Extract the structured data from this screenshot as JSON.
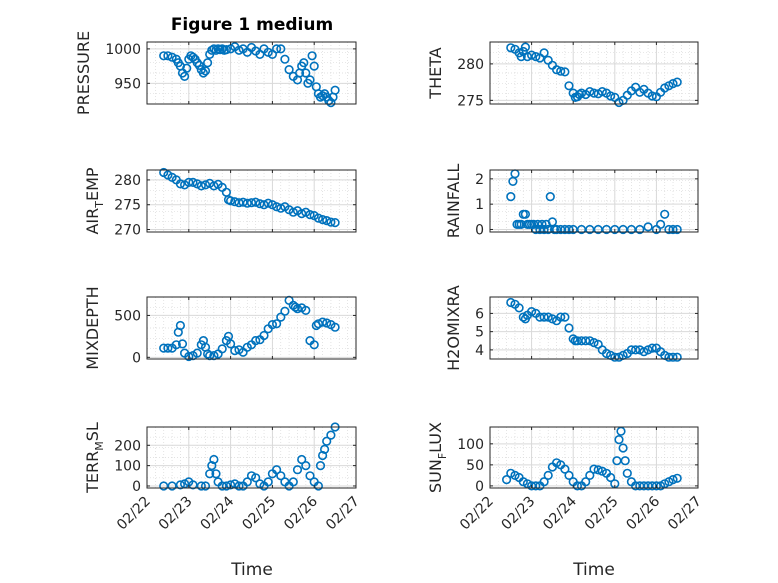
{
  "figure": {
    "title": "Figure 1 medium",
    "xlabel": "Time",
    "marker_color": "#0072BD",
    "grid_color": "#d9d9d9",
    "x_ticks": [
      "02/22",
      "02/23",
      "02/24",
      "02/25",
      "02/26",
      "02/27"
    ]
  },
  "chart_data": [
    {
      "type": "scatter",
      "ylabel": "PRESSURE",
      "ylim": [
        920,
        1010
      ],
      "yticks": [
        950,
        1000
      ],
      "x": [
        0.4,
        0.5,
        0.6,
        0.7,
        0.75,
        0.8,
        0.85,
        0.9,
        0.95,
        1.0,
        1.05,
        1.1,
        1.15,
        1.2,
        1.25,
        1.3,
        1.35,
        1.4,
        1.45,
        1.5,
        1.55,
        1.6,
        1.65,
        1.7,
        1.75,
        1.8,
        1.85,
        1.9,
        2.0,
        2.1,
        2.2,
        2.3,
        2.4,
        2.5,
        2.6,
        2.7,
        2.8,
        2.9,
        3.0,
        3.1,
        3.2,
        3.3,
        3.4,
        3.5,
        3.6,
        3.65,
        3.7,
        3.75,
        3.8,
        3.85,
        3.9,
        3.95,
        4.0,
        4.05,
        4.1,
        4.15,
        4.2,
        4.25,
        4.3,
        4.35,
        4.4,
        4.45,
        4.5
      ],
      "y": [
        990,
        990,
        988,
        985,
        980,
        975,
        965,
        960,
        972,
        985,
        990,
        988,
        985,
        980,
        976,
        970,
        965,
        968,
        980,
        992,
        998,
        1000,
        998,
        1000,
        999,
        1000,
        998,
        999,
        1000,
        1003,
        998,
        1000,
        995,
        1002,
        997,
        992,
        1000,
        995,
        992,
        1000,
        1000,
        985,
        970,
        960,
        955,
        965,
        975,
        980,
        965,
        950,
        955,
        990,
        975,
        945,
        935,
        930,
        932,
        935,
        930,
        925,
        922,
        930,
        940
      ]
    },
    {
      "type": "scatter",
      "ylabel": "THETA",
      "ylim": [
        274.5,
        283
      ],
      "yticks": [
        275,
        280
      ],
      "x": [
        0.5,
        0.6,
        0.7,
        0.75,
        0.8,
        0.85,
        0.9,
        1.0,
        1.1,
        1.2,
        1.3,
        1.4,
        1.5,
        1.6,
        1.7,
        1.8,
        1.9,
        2.0,
        2.05,
        2.1,
        2.15,
        2.2,
        2.3,
        2.4,
        2.5,
        2.6,
        2.7,
        2.8,
        2.9,
        3.0,
        3.1,
        3.2,
        3.3,
        3.4,
        3.5,
        3.6,
        3.7,
        3.8,
        3.9,
        4.0,
        4.1,
        4.2,
        4.3,
        4.4,
        4.5
      ],
      "y": [
        282.2,
        282,
        281.5,
        281,
        281.7,
        282.3,
        281,
        281.2,
        281,
        280.8,
        281.5,
        280.5,
        279.8,
        279.2,
        279,
        278.9,
        277,
        276,
        275.4,
        275.5,
        275.8,
        276,
        275.8,
        276.2,
        276,
        275.9,
        276.2,
        276,
        275.6,
        275.4,
        274.7,
        275,
        275.7,
        276.3,
        276.8,
        276.1,
        276.5,
        276,
        275.6,
        275.5,
        276.1,
        276.7,
        277,
        277.3,
        277.5
      ]
    },
    {
      "type": "scatter",
      "ylabel": "AIR_TEMP",
      "ylim": [
        269.5,
        282
      ],
      "yticks": [
        270,
        275,
        280
      ],
      "x": [
        0.4,
        0.5,
        0.6,
        0.7,
        0.8,
        0.9,
        1.0,
        1.1,
        1.2,
        1.3,
        1.4,
        1.5,
        1.6,
        1.7,
        1.8,
        1.9,
        1.95,
        2.0,
        2.1,
        2.2,
        2.3,
        2.4,
        2.5,
        2.6,
        2.7,
        2.8,
        2.9,
        3.0,
        3.1,
        3.2,
        3.3,
        3.4,
        3.5,
        3.6,
        3.7,
        3.8,
        3.9,
        4.0,
        4.1,
        4.2,
        4.3,
        4.4,
        4.5
      ],
      "y": [
        281.5,
        281,
        280.5,
        280,
        279.2,
        279,
        279.5,
        279.5,
        279.2,
        278.8,
        279,
        279.3,
        278.8,
        279.1,
        278.5,
        277.5,
        276,
        275.8,
        275.6,
        275.4,
        275.5,
        275.3,
        275.4,
        275.5,
        275.2,
        275,
        275.3,
        275,
        274.6,
        274.3,
        274.6,
        274,
        273.5,
        273.8,
        273.2,
        273.5,
        273,
        272.8,
        272.3,
        272,
        271.8,
        271.5,
        271.4
      ]
    },
    {
      "type": "scatter",
      "ylabel": "RAINFALL",
      "ylim": [
        -0.1,
        2.35
      ],
      "yticks": [
        0,
        1,
        2
      ],
      "x": [
        0.5,
        0.55,
        0.6,
        0.65,
        0.7,
        0.75,
        0.8,
        0.85,
        0.9,
        0.95,
        1.0,
        1.05,
        1.1,
        1.15,
        1.2,
        1.25,
        1.3,
        1.35,
        1.4,
        1.45,
        1.5,
        1.55,
        1.6,
        1.7,
        1.8,
        1.9,
        2.0,
        2.2,
        2.4,
        2.6,
        2.8,
        3.0,
        3.2,
        3.4,
        3.6,
        3.8,
        4.0,
        4.1,
        4.2,
        4.3,
        4.4,
        4.5
      ],
      "y": [
        1.3,
        1.9,
        2.2,
        0.2,
        0.2,
        0.2,
        0.6,
        0.6,
        0.2,
        0.2,
        0.2,
        0.2,
        0,
        0.2,
        0,
        0.2,
        0,
        0.2,
        0,
        1.3,
        0.3,
        0,
        0,
        0,
        0,
        0,
        0,
        0,
        0,
        0,
        0,
        0,
        0,
        0,
        0,
        0.1,
        0,
        0.2,
        0.6,
        0,
        0,
        0
      ]
    },
    {
      "type": "scatter",
      "ylabel": "MIXDEPTH",
      "ylim": [
        -20,
        720
      ],
      "yticks": [
        0,
        500
      ],
      "x": [
        0.4,
        0.5,
        0.6,
        0.7,
        0.75,
        0.8,
        0.85,
        0.9,
        1.0,
        1.1,
        1.2,
        1.3,
        1.35,
        1.4,
        1.45,
        1.5,
        1.6,
        1.7,
        1.8,
        1.9,
        1.95,
        2.0,
        2.1,
        2.2,
        2.3,
        2.4,
        2.5,
        2.6,
        2.7,
        2.8,
        2.9,
        3.0,
        3.1,
        3.2,
        3.3,
        3.4,
        3.5,
        3.55,
        3.6,
        3.7,
        3.8,
        3.9,
        4.0,
        4.05,
        4.1,
        4.2,
        4.3,
        4.4,
        4.5
      ],
      "y": [
        110,
        110,
        110,
        150,
        300,
        380,
        160,
        50,
        10,
        20,
        50,
        150,
        200,
        120,
        40,
        20,
        20,
        40,
        100,
        200,
        250,
        160,
        80,
        90,
        60,
        120,
        150,
        200,
        210,
        260,
        340,
        390,
        400,
        480,
        550,
        680,
        620,
        600,
        580,
        590,
        560,
        200,
        150,
        380,
        400,
        420,
        410,
        390,
        360
      ]
    },
    {
      "type": "scatter",
      "ylabel": "H2OMIXRA",
      "ylim": [
        3.5,
        6.9
      ],
      "yticks": [
        4,
        5,
        6
      ],
      "x": [
        0.5,
        0.6,
        0.7,
        0.8,
        0.85,
        0.9,
        1.0,
        1.1,
        1.2,
        1.3,
        1.4,
        1.5,
        1.6,
        1.7,
        1.8,
        1.9,
        2.0,
        2.05,
        2.1,
        2.2,
        2.3,
        2.4,
        2.5,
        2.6,
        2.7,
        2.8,
        2.9,
        3.0,
        3.1,
        3.2,
        3.3,
        3.4,
        3.5,
        3.6,
        3.7,
        3.8,
        3.9,
        4.0,
        4.1,
        4.2,
        4.3,
        4.4,
        4.5
      ],
      "y": [
        6.6,
        6.5,
        6.3,
        5.8,
        5.7,
        5.9,
        6.1,
        6.0,
        5.8,
        5.8,
        5.8,
        5.7,
        5.6,
        5.8,
        5.8,
        5.2,
        4.6,
        4.5,
        4.5,
        4.5,
        4.5,
        4.5,
        4.4,
        4.3,
        4.0,
        3.8,
        3.7,
        3.6,
        3.6,
        3.7,
        3.8,
        4.0,
        4.0,
        4.0,
        3.9,
        4.0,
        4.1,
        4.1,
        3.9,
        3.7,
        3.6,
        3.6,
        3.6
      ]
    },
    {
      "type": "scatter",
      "ylabel": "TERR_MSL",
      "ylim": [
        -10,
        290
      ],
      "yticks": [
        0,
        100,
        200
      ],
      "x": [
        0.4,
        0.6,
        0.8,
        0.9,
        1.0,
        1.1,
        1.3,
        1.4,
        1.5,
        1.55,
        1.6,
        1.65,
        1.7,
        1.8,
        1.9,
        2.0,
        2.1,
        2.2,
        2.3,
        2.4,
        2.5,
        2.6,
        2.7,
        2.8,
        2.9,
        3.0,
        3.1,
        3.2,
        3.3,
        3.4,
        3.5,
        3.6,
        3.7,
        3.8,
        3.9,
        4.0,
        4.1,
        4.15,
        4.2,
        4.25,
        4.3,
        4.4,
        4.5
      ],
      "y": [
        0,
        0,
        5,
        10,
        20,
        5,
        0,
        0,
        60,
        100,
        130,
        60,
        20,
        0,
        0,
        5,
        10,
        0,
        0,
        20,
        50,
        40,
        10,
        0,
        20,
        60,
        80,
        50,
        20,
        0,
        20,
        80,
        130,
        100,
        50,
        20,
        0,
        100,
        150,
        180,
        220,
        250,
        290
      ]
    },
    {
      "type": "scatter",
      "ylabel": "SUN_FLUX",
      "ylim": [
        -5,
        140
      ],
      "yticks": [
        0,
        50,
        100
      ],
      "x": [
        0.4,
        0.5,
        0.6,
        0.7,
        0.8,
        0.9,
        1.0,
        1.1,
        1.2,
        1.3,
        1.4,
        1.5,
        1.6,
        1.7,
        1.8,
        1.9,
        2.0,
        2.1,
        2.2,
        2.3,
        2.4,
        2.5,
        2.6,
        2.7,
        2.8,
        2.9,
        3.0,
        3.05,
        3.1,
        3.15,
        3.2,
        3.25,
        3.3,
        3.4,
        3.5,
        3.6,
        3.7,
        3.8,
        3.9,
        4.0,
        4.1,
        4.2,
        4.3,
        4.4,
        4.5
      ],
      "y": [
        15,
        30,
        25,
        20,
        10,
        5,
        0,
        0,
        0,
        10,
        25,
        45,
        55,
        50,
        40,
        25,
        10,
        0,
        0,
        10,
        25,
        40,
        38,
        35,
        30,
        20,
        5,
        60,
        110,
        130,
        90,
        60,
        30,
        10,
        0,
        0,
        0,
        0,
        0,
        0,
        0,
        5,
        10,
        15,
        18
      ]
    }
  ]
}
